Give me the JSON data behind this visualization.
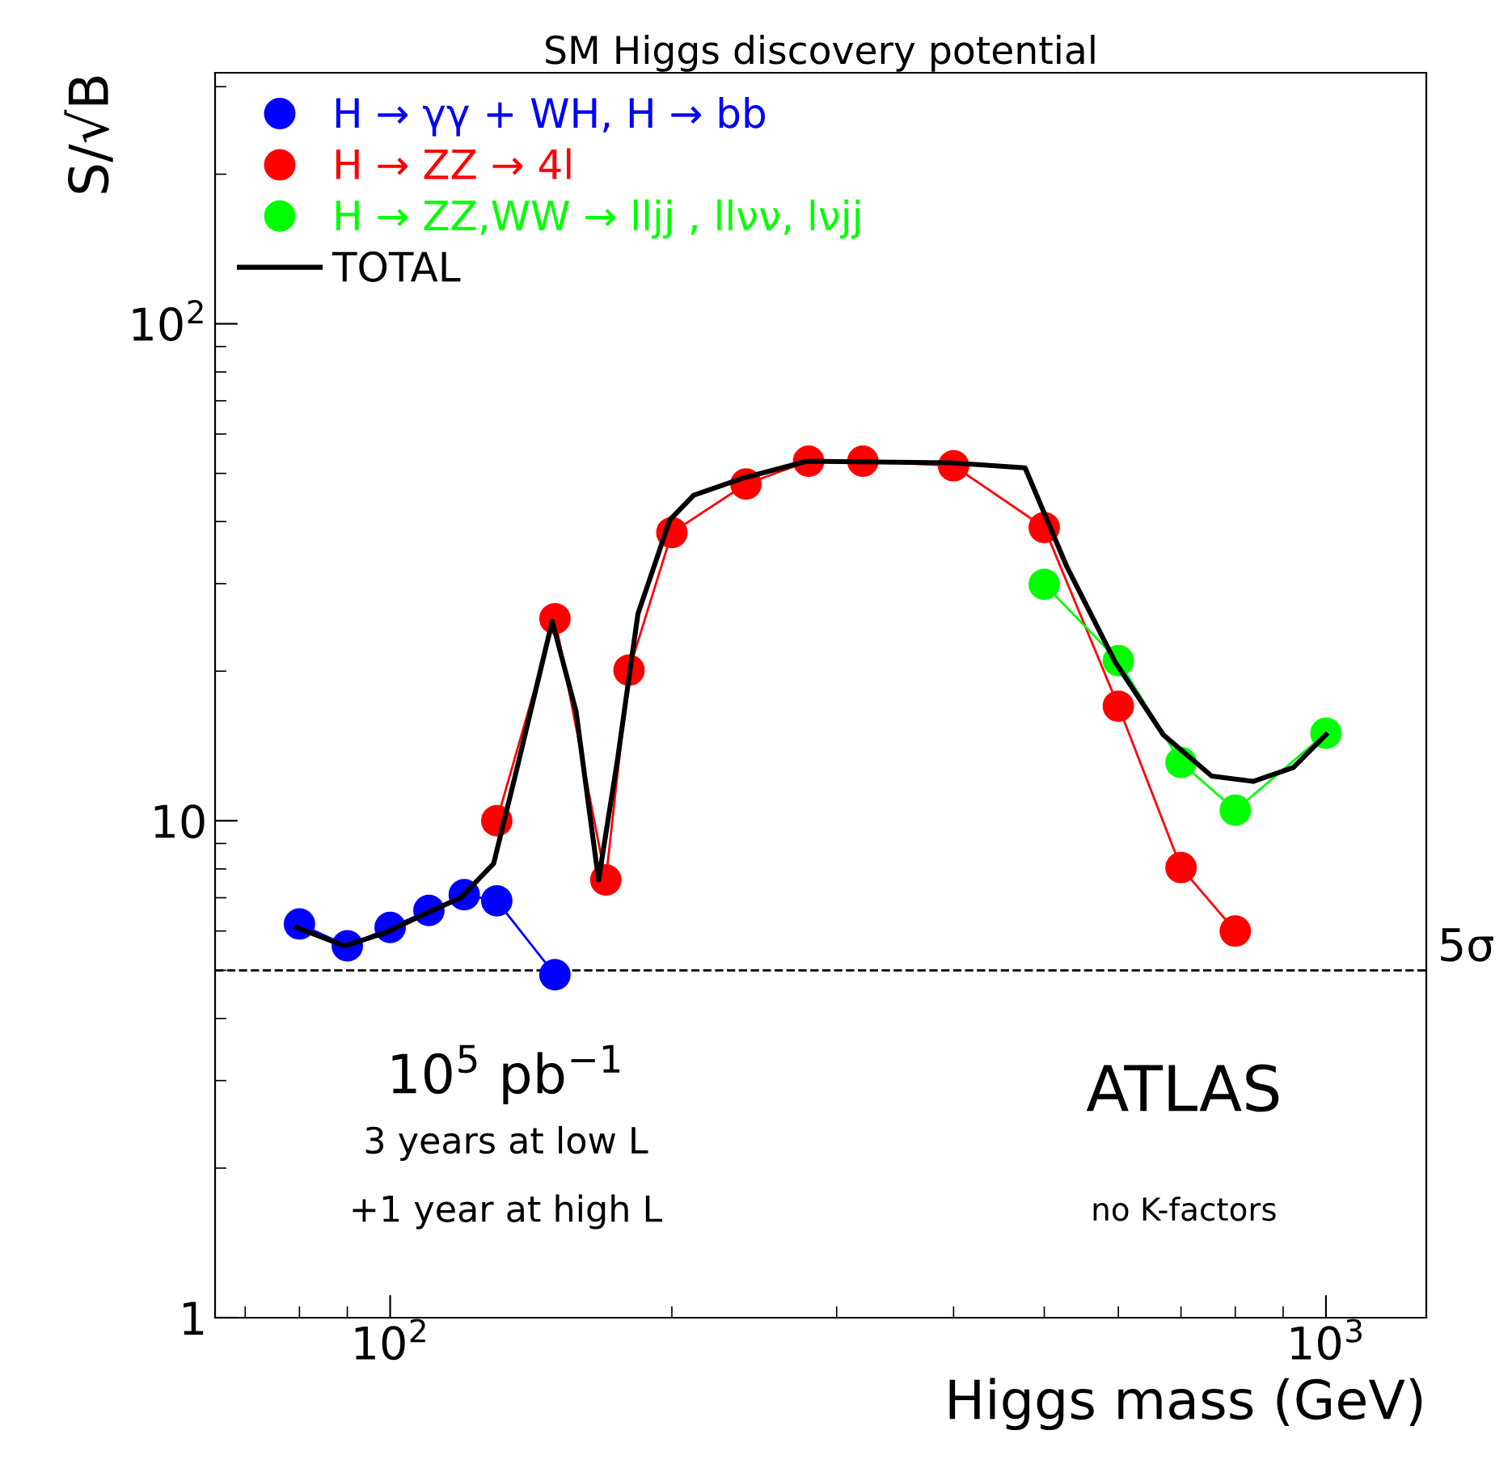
{
  "chart_data": {
    "type": "line",
    "title": "SM Higgs discovery potential",
    "xlabel": "Higgs mass (GeV)",
    "ylabel": "S/√B",
    "log": "xy",
    "xlim": [
      65,
      1280
    ],
    "ylim": [
      1,
      320
    ],
    "xticks": [
      {
        "value": 100,
        "label": "10$^{2}$"
      },
      {
        "value": 1000,
        "label": "10$^{3}$"
      }
    ],
    "yticks": [
      1,
      10,
      {
        "value": 100,
        "label": "10$^{2}$"
      }
    ],
    "grid": false,
    "legend": "top left",
    "marker": "circle",
    "line_style": "solid",
    "series": [
      {
        "name": "H → γγ + WH, H → bb",
        "color": "#0000ff",
        "x": [
          80,
          90,
          100,
          110,
          120,
          130,
          150
        ],
        "values": [
          6.2,
          5.6,
          6.1,
          6.6,
          7.1,
          6.9,
          4.9
        ]
      },
      {
        "name": "H → ZZ → 4l",
        "color": "#ff0000",
        "x": [
          130,
          150,
          170,
          180,
          200,
          240,
          280,
          320,
          400,
          500,
          600,
          700,
          800
        ],
        "values": [
          10,
          25.5,
          7.6,
          20.1,
          38,
          47.6,
          52.9,
          52.9,
          51.8,
          38.9,
          17.0,
          8.05,
          6.0
        ]
      },
      {
        "name": "H → ZZ,WW → lljj , llνν, lνjj",
        "color": "#00ff00",
        "x": [
          500,
          600,
          700,
          800,
          1000
        ],
        "values": [
          29.9,
          21.0,
          13.1,
          10.5,
          15.0
        ]
      },
      {
        "name": "TOTAL",
        "color": "#000000",
        "marker": "none",
        "x": [
          79.4,
          89.4,
          98.8,
          109,
          119,
          129,
          136,
          149,
          158,
          167,
          175,
          184,
          199,
          211,
          239,
          279,
          398,
          477,
          528,
          595,
          670,
          755,
          836,
          923,
          1000
        ],
        "values": [
          6.1,
          5.6,
          5.95,
          6.5,
          7.0,
          8.2,
          12.3,
          25.2,
          16.6,
          7.6,
          13.3,
          26.1,
          40.3,
          45.2,
          49.0,
          52.9,
          52.5,
          51.3,
          32.6,
          20.9,
          14.9,
          12.3,
          12.0,
          12.8,
          14.9
        ]
      }
    ],
    "ref_lines": [
      {
        "axis": "y",
        "value": 5,
        "label": "5σ",
        "color": "#000000",
        "line_style": "dashed"
      }
    ],
    "annotations": [
      "10$^{5}$ pb$^{−1}$",
      "3 years at low L",
      "+1 year at high L",
      "ATLAS",
      "no K-factors"
    ]
  }
}
